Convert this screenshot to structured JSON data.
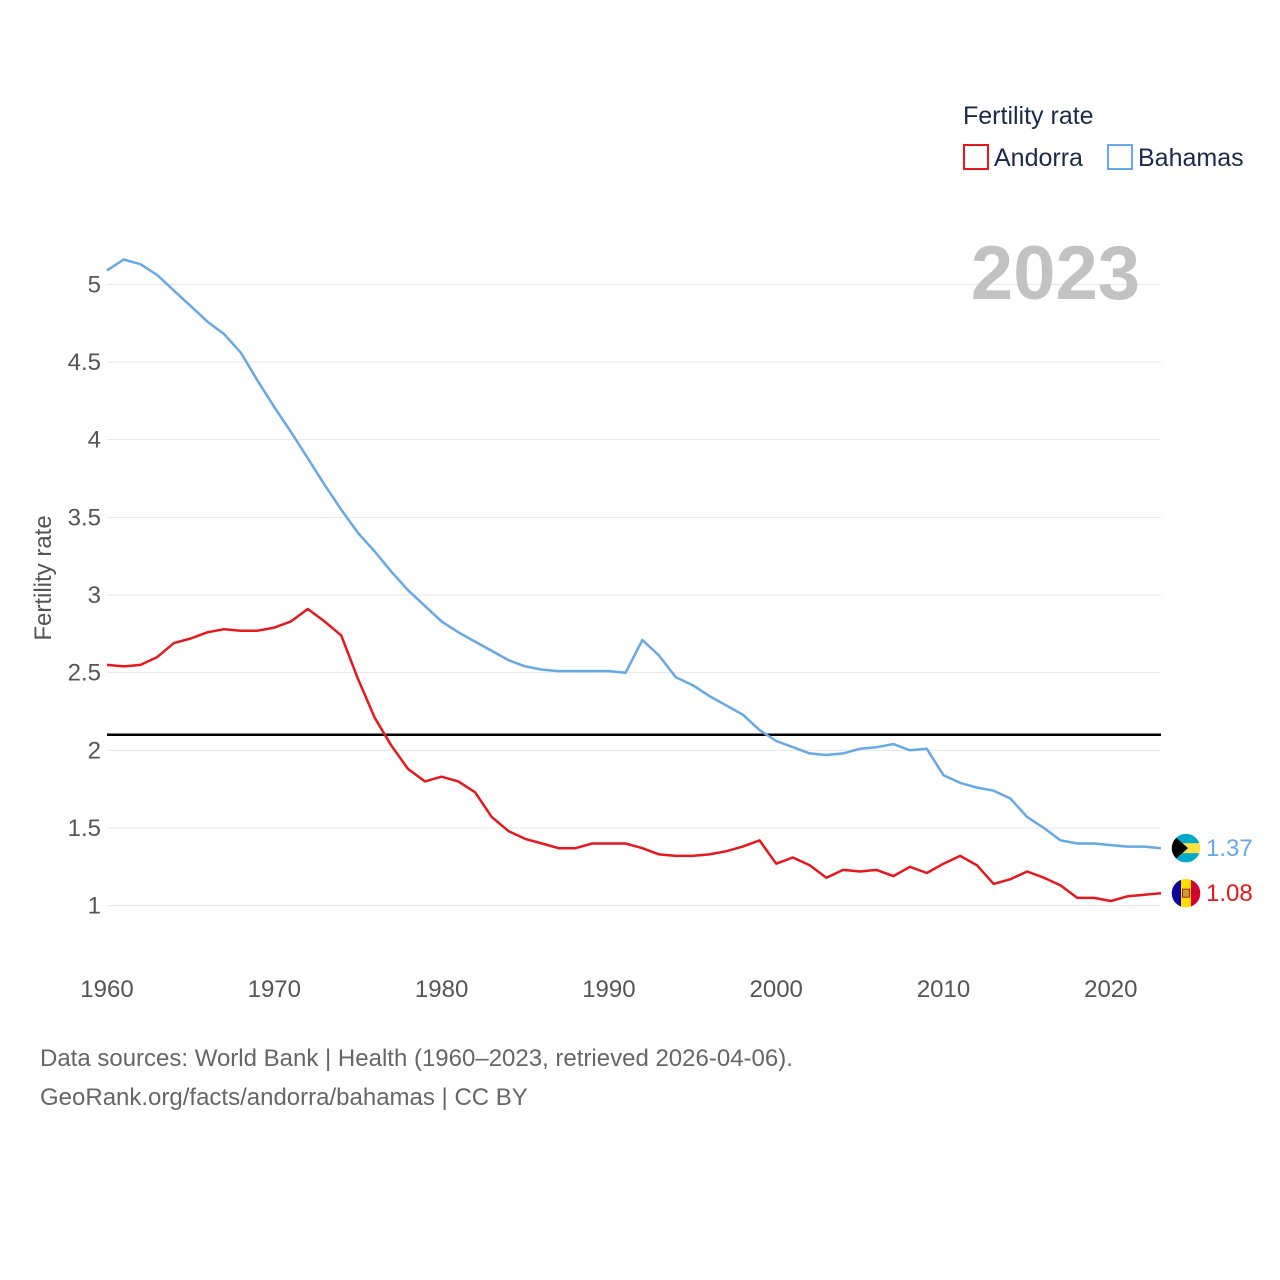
{
  "chart_data": {
    "type": "line",
    "legend_title": "Fertility rate",
    "ylabel": "Fertility rate",
    "current_year": "2023",
    "xlim": [
      1960,
      2023
    ],
    "ylim": [
      0.65,
      5.35
    ],
    "x_ticks": [
      1960,
      1970,
      1980,
      1990,
      2000,
      2010,
      2020
    ],
    "y_ticks": [
      1,
      1.5,
      2,
      2.5,
      3,
      3.5,
      4,
      4.5,
      5
    ],
    "y_tick_labels": [
      "1",
      "1.5",
      "2",
      "2.5",
      "3",
      "3.5",
      "4",
      "4.5",
      "5"
    ],
    "x_tick_labels": [
      "1960",
      "1970",
      "1980",
      "1990",
      "2000",
      "2010",
      "2020"
    ],
    "replacement_level": 2.1,
    "x": [
      1960,
      1961,
      1962,
      1963,
      1964,
      1965,
      1966,
      1967,
      1968,
      1969,
      1970,
      1971,
      1972,
      1973,
      1974,
      1975,
      1976,
      1977,
      1978,
      1979,
      1980,
      1981,
      1982,
      1983,
      1984,
      1985,
      1986,
      1987,
      1988,
      1989,
      1990,
      1991,
      1992,
      1993,
      1994,
      1995,
      1996,
      1997,
      1998,
      1999,
      2000,
      2001,
      2002,
      2003,
      2004,
      2005,
      2006,
      2007,
      2008,
      2009,
      2010,
      2011,
      2012,
      2013,
      2014,
      2015,
      2016,
      2017,
      2018,
      2019,
      2020,
      2021,
      2022,
      2023
    ],
    "series": [
      {
        "name": "Andorra",
        "color": "#e8171b",
        "end_label": "1.08",
        "flag_icon": "andorra-flag-icon",
        "values": [
          2.55,
          2.54,
          2.55,
          2.6,
          2.69,
          2.72,
          2.76,
          2.78,
          2.77,
          2.77,
          2.79,
          2.83,
          2.91,
          2.83,
          2.74,
          2.46,
          2.21,
          2.03,
          1.88,
          1.8,
          1.83,
          1.8,
          1.73,
          1.57,
          1.48,
          1.43,
          1.4,
          1.37,
          1.37,
          1.4,
          1.4,
          1.4,
          1.37,
          1.33,
          1.32,
          1.32,
          1.33,
          1.35,
          1.38,
          1.42,
          1.27,
          1.31,
          1.26,
          1.18,
          1.23,
          1.22,
          1.23,
          1.19,
          1.25,
          1.21,
          1.27,
          1.32,
          1.26,
          1.14,
          1.17,
          1.22,
          1.18,
          1.13,
          1.05,
          1.05,
          1.03,
          1.06,
          1.07,
          1.08
        ]
      },
      {
        "name": "Bahamas",
        "color": "#66a9e6",
        "end_label": "1.37",
        "flag_icon": "bahamas-flag-icon",
        "values": [
          5.09,
          5.16,
          5.13,
          5.06,
          4.96,
          4.86,
          4.76,
          4.68,
          4.56,
          4.38,
          4.21,
          4.05,
          3.88,
          3.71,
          3.55,
          3.4,
          3.28,
          3.15,
          3.03,
          2.93,
          2.83,
          2.76,
          2.7,
          2.64,
          2.58,
          2.54,
          2.52,
          2.51,
          2.51,
          2.51,
          2.51,
          2.5,
          2.71,
          2.61,
          2.47,
          2.42,
          2.35,
          2.29,
          2.23,
          2.13,
          2.06,
          2.02,
          1.98,
          1.97,
          1.98,
          2.01,
          2.02,
          2.04,
          2.0,
          2.01,
          1.84,
          1.79,
          1.76,
          1.74,
          1.69,
          1.57,
          1.5,
          1.42,
          1.4,
          1.4,
          1.39,
          1.38,
          1.38,
          1.37
        ]
      }
    ]
  },
  "source": {
    "line1": "Data sources: World Bank | Health (1960–2023, retrieved 2026-04-06).",
    "line2": "GeoRank.org/facts/andorra/bahamas | CC BY"
  }
}
